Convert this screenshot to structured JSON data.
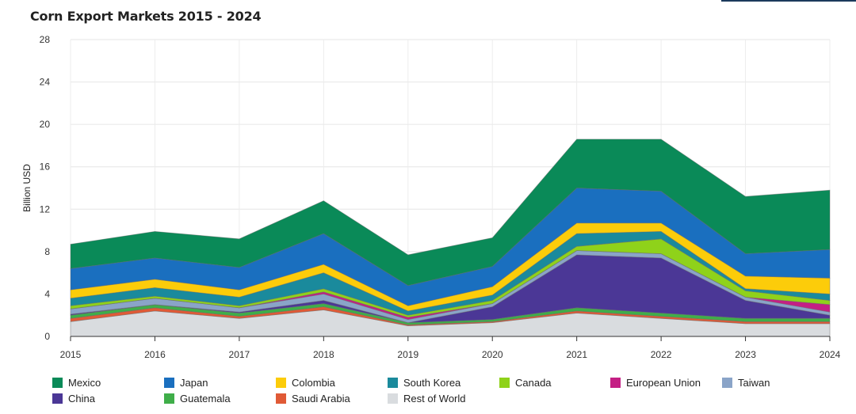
{
  "chart_data": {
    "type": "area",
    "stacked": true,
    "title": "Corn Export Markets 2015 - 2024",
    "xlabel": "",
    "ylabel": "Billion USD",
    "ylim": [
      0,
      28
    ],
    "yticks": [
      0,
      4,
      8,
      12,
      16,
      20,
      24,
      28
    ],
    "x": [
      "2015",
      "2016",
      "2017",
      "2018",
      "2019",
      "2020",
      "2021",
      "2022",
      "2023",
      "2024"
    ],
    "grid": true,
    "legend_position": "bottom",
    "series": [
      {
        "name": "Rest of World",
        "color": "#d9dcdf",
        "values": [
          1.4,
          2.4,
          1.7,
          2.5,
          1.0,
          1.3,
          2.2,
          1.7,
          1.2,
          1.2
        ]
      },
      {
        "name": "Saudi Arabia",
        "color": "#e05a36",
        "values": [
          0.3,
          0.3,
          0.2,
          0.3,
          0.1,
          0.1,
          0.2,
          0.2,
          0.2,
          0.2
        ]
      },
      {
        "name": "Guatemala",
        "color": "#3fae49",
        "values": [
          0.3,
          0.3,
          0.3,
          0.3,
          0.2,
          0.2,
          0.3,
          0.3,
          0.3,
          0.3
        ]
      },
      {
        "name": "China",
        "color": "#4b3796",
        "values": [
          0.1,
          0.0,
          0.1,
          0.3,
          0.0,
          1.2,
          5.0,
          5.2,
          1.7,
          0.3
        ]
      },
      {
        "name": "Taiwan",
        "color": "#8aa4c8",
        "values": [
          0.5,
          0.6,
          0.4,
          0.6,
          0.3,
          0.3,
          0.4,
          0.4,
          0.3,
          0.3
        ]
      },
      {
        "name": "European Union",
        "color": "#c41f84",
        "values": [
          0.0,
          0.0,
          0.0,
          0.2,
          0.2,
          0.0,
          0.0,
          0.0,
          0.0,
          0.7
        ]
      },
      {
        "name": "Canada",
        "color": "#8fd21a",
        "values": [
          0.3,
          0.2,
          0.2,
          0.3,
          0.2,
          0.3,
          0.4,
          1.4,
          0.6,
          0.4
        ]
      },
      {
        "name": "South Korea",
        "color": "#1a8a9c",
        "values": [
          0.7,
          0.8,
          0.8,
          1.5,
          0.4,
          0.5,
          1.2,
          0.7,
          0.2,
          0.6
        ]
      },
      {
        "name": "Colombia",
        "color": "#fccc0a",
        "values": [
          0.8,
          0.8,
          0.7,
          0.8,
          0.5,
          0.8,
          1.0,
          0.8,
          1.2,
          1.5
        ]
      },
      {
        "name": "Japan",
        "color": "#1a6fbf",
        "values": [
          2.0,
          2.0,
          2.1,
          2.9,
          1.9,
          1.9,
          3.3,
          3.0,
          2.1,
          2.7
        ]
      },
      {
        "name": "Mexico",
        "color": "#0a8a58",
        "values": [
          2.3,
          2.5,
          2.7,
          3.1,
          2.9,
          2.7,
          4.6,
          4.9,
          5.4,
          5.6
        ]
      }
    ],
    "legend_order": [
      "Mexico",
      "Japan",
      "Colombia",
      "South Korea",
      "Canada",
      "European Union",
      "Taiwan",
      "China",
      "Guatemala",
      "Saudi Arabia",
      "Rest of World"
    ]
  }
}
